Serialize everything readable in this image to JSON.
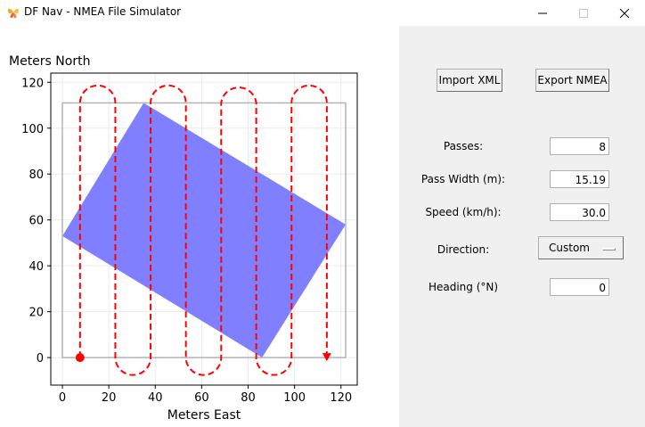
{
  "window": {
    "title": "DF Nav - NMEA File Simulator",
    "icon": "butterfly-app-icon",
    "controls": {
      "minimize": "—",
      "maximize": "☐",
      "close": "✕"
    }
  },
  "toolbar": {
    "import_label": "Import XML",
    "export_label": "Export NMEA"
  },
  "form": {
    "passes_label": "Passes:",
    "passes_value": "8",
    "pass_width_label": "Pass Width (m):",
    "pass_width_value": "15.19",
    "speed_label": "Speed (km/h):",
    "speed_value": "30.0",
    "direction_label": "Direction:",
    "direction_value": "Custom",
    "heading_label": "Heading (°N)",
    "heading_value": "0"
  },
  "chart_data": {
    "type": "line",
    "xlabel": "Meters East",
    "ylabel": "Meters North",
    "xlim": [
      -5,
      127
    ],
    "ylim": [
      -12,
      124
    ],
    "xticks": [
      0,
      20,
      40,
      60,
      80,
      100,
      120
    ],
    "yticks": [
      0,
      20,
      40,
      60,
      80,
      100,
      120
    ],
    "field_polygon": [
      [
        0,
        53
      ],
      [
        35,
        111
      ],
      [
        122,
        58
      ],
      [
        86,
        0
      ]
    ],
    "bounding_box": {
      "x": [
        0,
        122
      ],
      "y": [
        0,
        111
      ]
    },
    "passes_x": [
      7.6,
      22.8,
      38.0,
      53.2,
      68.4,
      83.5,
      98.7,
      113.9
    ],
    "path_y_range": [
      0,
      111
    ],
    "turn_radius": 7.6,
    "start_point": [
      7.6,
      0
    ],
    "end_point": [
      113.9,
      0
    ],
    "colors": {
      "field": "#7f7fff",
      "bounding_box": "#b3b3b3",
      "path": "#ff0000",
      "grid": "#ebebeb"
    }
  }
}
